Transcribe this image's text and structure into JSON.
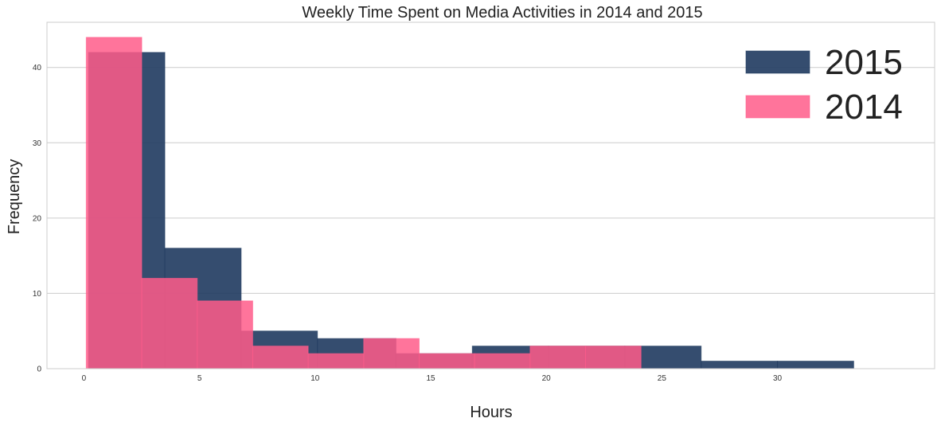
{
  "chart_data": {
    "type": "bar",
    "title": "Weekly Time Spent on Media Activities in 2014 and 2015",
    "xlabel": "Hours",
    "ylabel": "Frequency",
    "xlim": [
      -1.6,
      36.8
    ],
    "ylim": [
      0,
      46
    ],
    "xticks": [
      0,
      5,
      10,
      15,
      20,
      25,
      30
    ],
    "yticks": [
      0,
      10,
      20,
      30,
      40
    ],
    "grid": true,
    "legend_position": "top-right",
    "series": [
      {
        "name": "2015",
        "color": "#1f3a5f",
        "bins": [
          {
            "x0": 0.2,
            "x1": 3.5,
            "value": 42
          },
          {
            "x0": 3.5,
            "x1": 6.8,
            "value": 16
          },
          {
            "x0": 6.8,
            "x1": 10.1,
            "value": 5
          },
          {
            "x0": 10.1,
            "x1": 13.5,
            "value": 4
          },
          {
            "x0": 13.5,
            "x1": 16.8,
            "value": 2
          },
          {
            "x0": 16.8,
            "x1": 20.1,
            "value": 3
          },
          {
            "x0": 20.1,
            "x1": 23.4,
            "value": 3
          },
          {
            "x0": 23.4,
            "x1": 26.7,
            "value": 3
          },
          {
            "x0": 26.7,
            "x1": 30.0,
            "value": 1
          },
          {
            "x0": 30.0,
            "x1": 33.3,
            "value": 1
          }
        ]
      },
      {
        "name": "2014",
        "color": "#ff5c8a",
        "bins": [
          {
            "x0": 0.1,
            "x1": 2.5,
            "value": 44
          },
          {
            "x0": 2.5,
            "x1": 4.9,
            "value": 12
          },
          {
            "x0": 4.9,
            "x1": 7.3,
            "value": 9
          },
          {
            "x0": 7.3,
            "x1": 9.7,
            "value": 3
          },
          {
            "x0": 9.7,
            "x1": 12.1,
            "value": 2
          },
          {
            "x0": 12.1,
            "x1": 14.5,
            "value": 4
          },
          {
            "x0": 14.5,
            "x1": 16.9,
            "value": 2
          },
          {
            "x0": 16.9,
            "x1": 19.3,
            "value": 2
          },
          {
            "x0": 19.3,
            "x1": 21.7,
            "value": 3
          },
          {
            "x0": 21.7,
            "x1": 24.1,
            "value": 3
          }
        ]
      }
    ]
  }
}
